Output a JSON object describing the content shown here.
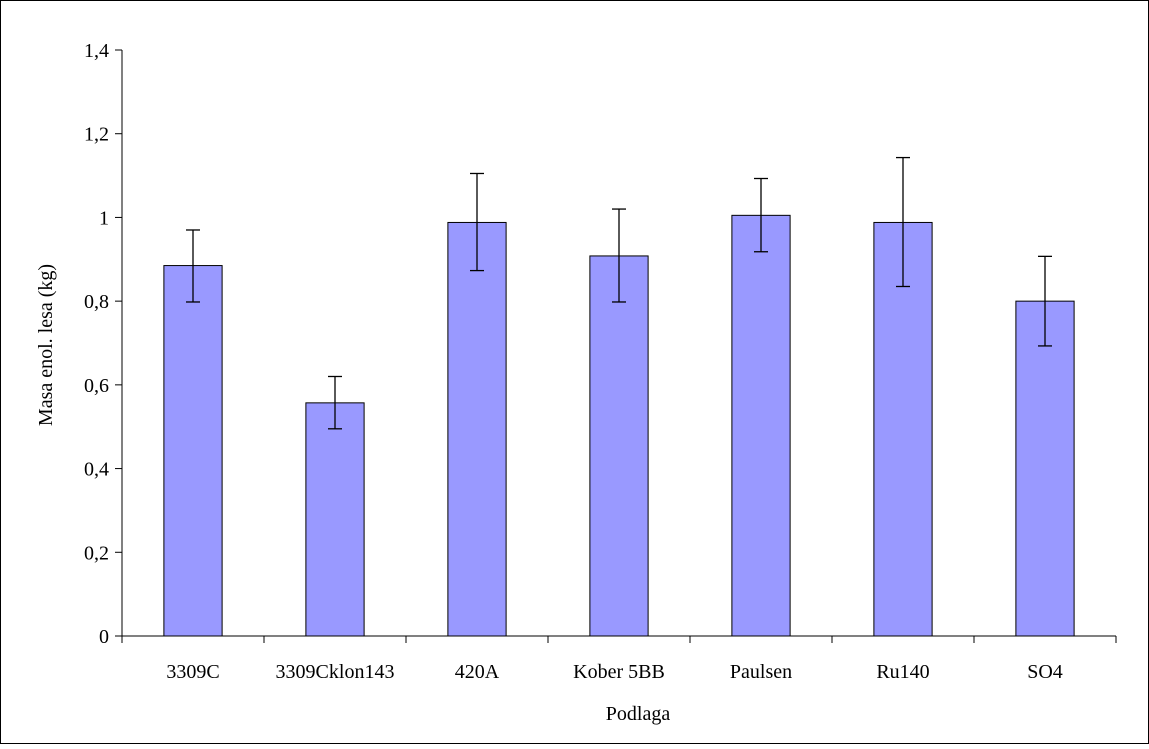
{
  "chart_data": {
    "type": "bar",
    "title": "",
    "xlabel": "Podlaga",
    "ylabel": "Masa enol. lesa (kg)",
    "categories": [
      "3309C",
      "3309Cklon143",
      "420A",
      "Kober 5BB",
      "Paulsen",
      "Ru140",
      "SO4"
    ],
    "values": [
      0.885,
      0.557,
      0.988,
      0.908,
      1.005,
      0.988,
      0.8
    ],
    "error_low": [
      0.798,
      0.495,
      0.873,
      0.798,
      0.918,
      0.835,
      0.693
    ],
    "error_high": [
      0.97,
      0.62,
      1.105,
      1.02,
      1.093,
      1.143,
      0.907
    ],
    "ylim": [
      0,
      1.4
    ],
    "yticks": [
      0,
      0.2,
      0.4,
      0.6,
      0.8,
      1,
      1.2,
      1.4
    ],
    "ytick_labels": [
      "0",
      "0,2",
      "0,4",
      "0,6",
      "0,8",
      "1",
      "1,2",
      "1,4"
    ],
    "grid": false,
    "legend": "none",
    "bar_color": "#9999ff",
    "edge_color": "#000000"
  }
}
